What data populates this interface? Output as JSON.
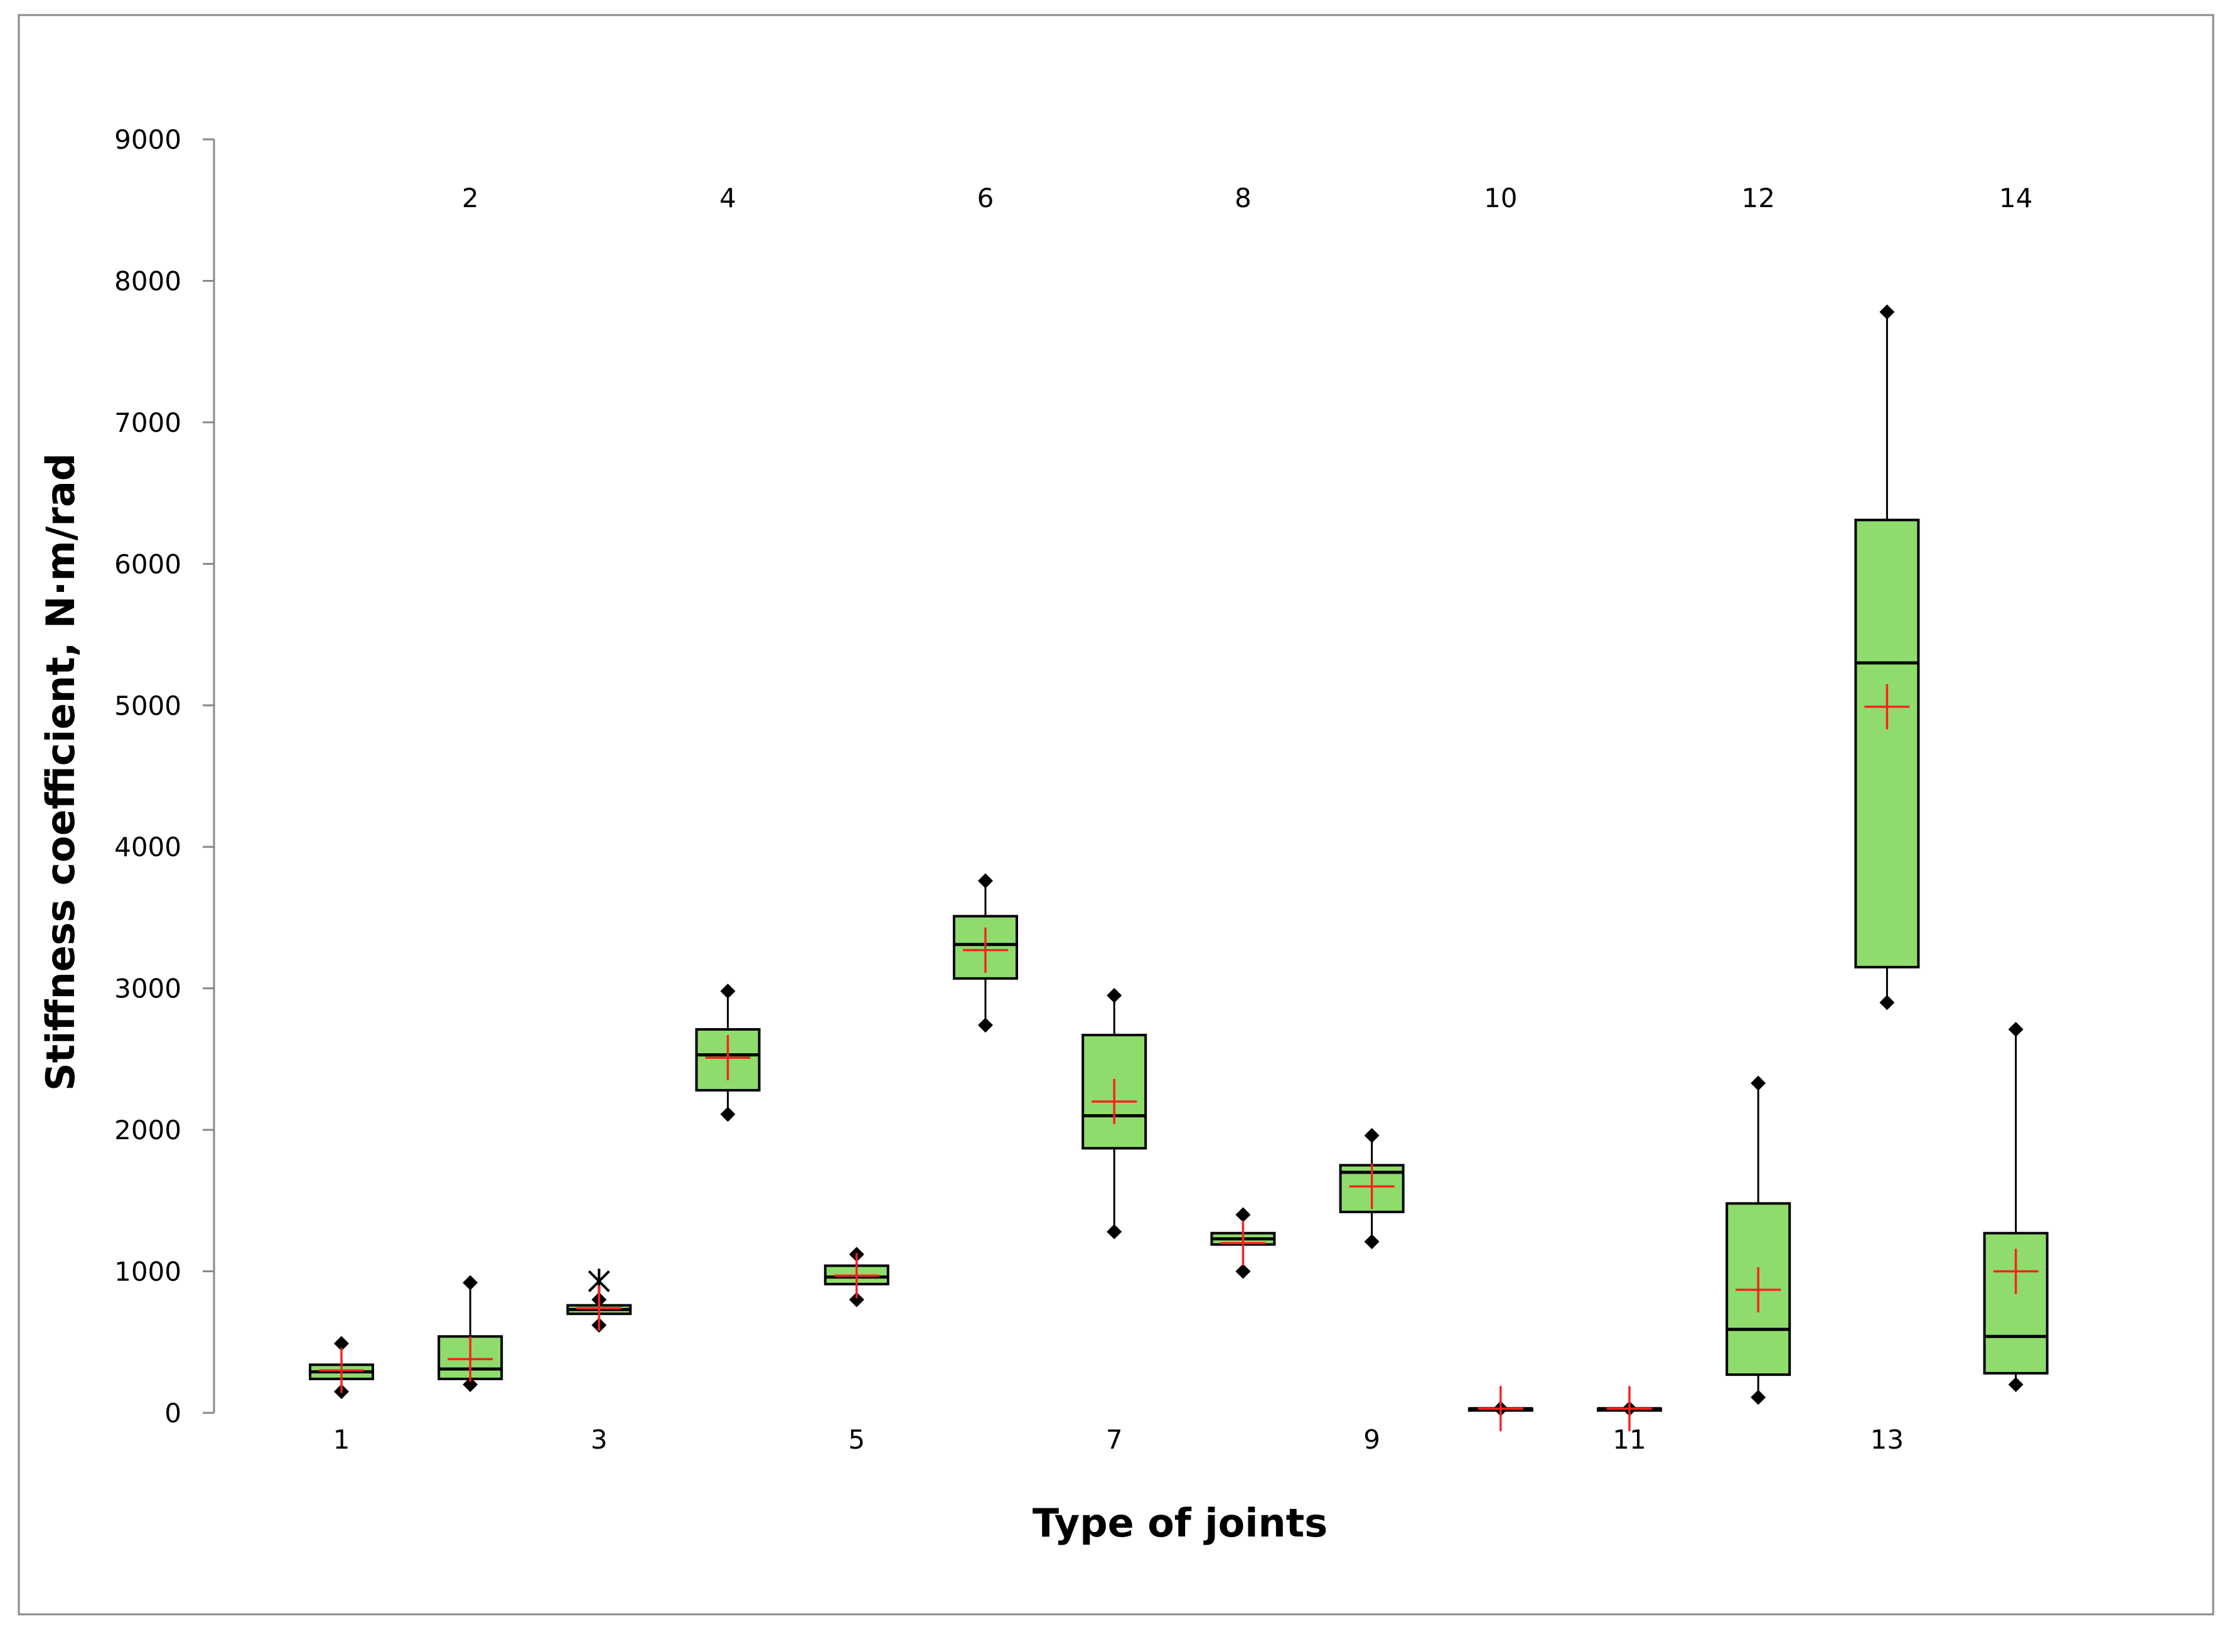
{
  "chart_data": {
    "type": "boxplot",
    "title": "",
    "xlabel": "Type of joints",
    "ylabel": "Stiffness coefficient, N·m/rad",
    "ylim": [
      0,
      9000
    ],
    "yticks": [
      0,
      1000,
      2000,
      3000,
      4000,
      5000,
      6000,
      7000,
      8000,
      9000
    ],
    "grid": false,
    "legend": "none",
    "categories": [
      "1",
      "2",
      "3",
      "4",
      "5",
      "6",
      "7",
      "8",
      "9",
      "10",
      "11",
      "12",
      "13",
      "14"
    ],
    "label_rows": {
      "bottom": [
        "1",
        "3",
        "5",
        "7",
        "9",
        "11",
        "13"
      ],
      "top": [
        "2",
        "4",
        "6",
        "8",
        "10",
        "12",
        "14"
      ]
    },
    "boxes": [
      {
        "category": "1",
        "min": 150,
        "q1": 240,
        "median": 290,
        "q3": 340,
        "max": 490,
        "mean": 300
      },
      {
        "category": "2",
        "min": 200,
        "q1": 240,
        "median": 310,
        "q3": 540,
        "max": 920,
        "mean": 380
      },
      {
        "category": "3",
        "min": 620,
        "q1": 700,
        "median": 730,
        "q3": 760,
        "max": 800,
        "mean": 740,
        "outliers": [
          930
        ]
      },
      {
        "category": "4",
        "min": 2110,
        "q1": 2280,
        "median": 2530,
        "q3": 2710,
        "max": 2980,
        "mean": 2510
      },
      {
        "category": "5",
        "min": 800,
        "q1": 910,
        "median": 960,
        "q3": 1040,
        "max": 1120,
        "mean": 970
      },
      {
        "category": "6",
        "min": 2740,
        "q1": 3070,
        "median": 3310,
        "q3": 3510,
        "max": 3760,
        "mean": 3270
      },
      {
        "category": "7",
        "min": 1280,
        "q1": 1870,
        "median": 2100,
        "q3": 2670,
        "max": 2950,
        "mean": 2200
      },
      {
        "category": "8",
        "min": 1000,
        "q1": 1190,
        "median": 1230,
        "q3": 1270,
        "max": 1400,
        "mean": 1200
      },
      {
        "category": "9",
        "min": 1210,
        "q1": 1420,
        "median": 1700,
        "q3": 1750,
        "max": 1960,
        "mean": 1600
      },
      {
        "category": "10",
        "min": 30,
        "q1": 30,
        "median": 30,
        "q3": 30,
        "max": 30,
        "mean": 30
      },
      {
        "category": "11",
        "min": 30,
        "q1": 30,
        "median": 30,
        "q3": 30,
        "max": 30,
        "mean": 30
      },
      {
        "category": "12",
        "min": 110,
        "q1": 270,
        "median": 590,
        "q3": 1480,
        "max": 2330,
        "mean": 870
      },
      {
        "category": "13",
        "min": 2900,
        "q1": 3150,
        "median": 5300,
        "q3": 6310,
        "max": 7780,
        "mean": 4990
      },
      {
        "category": "14",
        "min": 200,
        "q1": 280,
        "median": 540,
        "q3": 1270,
        "max": 2710,
        "mean": 1000
      }
    ],
    "colors": {
      "box_fill": "#8fdc6c",
      "box_stroke": "#000000",
      "mean_marker": "#ff2020",
      "axis": "#888888",
      "frame": "#888888"
    }
  }
}
